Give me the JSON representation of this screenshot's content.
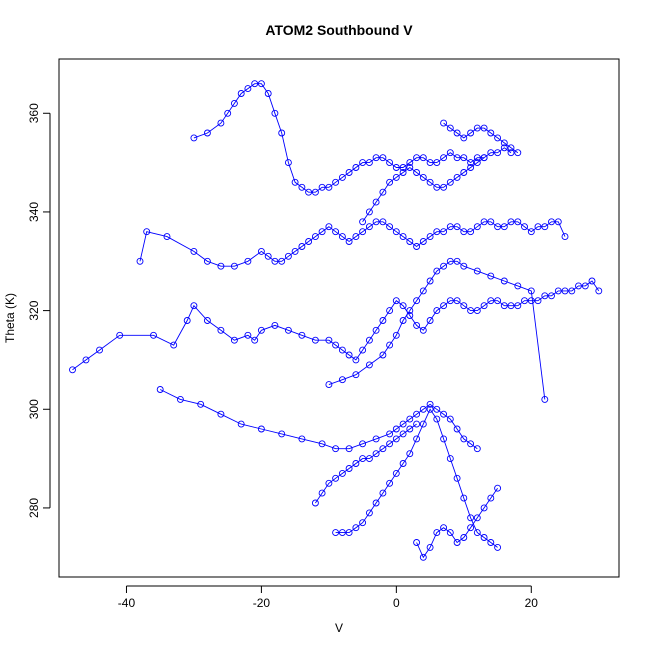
{
  "chart_data": {
    "type": "scatter",
    "title": "ATOM2 Southbound V",
    "xlabel": "V",
    "ylabel": "Theta (K)",
    "xlim": [
      -50,
      33
    ],
    "ylim": [
      266,
      371
    ],
    "xticks": [
      -40,
      -20,
      0,
      20
    ],
    "yticks": [
      280,
      300,
      320,
      340,
      360
    ],
    "grid": false,
    "legend": "none",
    "marker": "open-circle",
    "connected": true,
    "color": "#0000ff",
    "series": [
      {
        "x": [
          -48,
          -46,
          -44,
          -41,
          -36,
          -33,
          -31,
          -30,
          -28,
          -26,
          -24,
          -22,
          -21,
          -20,
          -18,
          -16,
          -14,
          -12,
          -10,
          -9,
          -8,
          -7,
          -6,
          -5,
          -4,
          -3,
          -2,
          -1,
          0,
          1,
          2,
          3,
          4,
          5,
          6,
          7,
          8,
          9,
          10,
          11,
          12,
          13,
          14,
          15,
          16,
          17,
          18,
          19,
          20,
          21,
          22,
          23,
          24,
          25,
          26,
          27,
          28,
          29,
          30
        ],
        "y": [
          308,
          310,
          312,
          315,
          315,
          313,
          318,
          321,
          318,
          316,
          314,
          315,
          314,
          316,
          317,
          316,
          315,
          314,
          314,
          313,
          312,
          311,
          310,
          312,
          314,
          316,
          318,
          320,
          322,
          321,
          319,
          317,
          316,
          318,
          320,
          321,
          322,
          322,
          321,
          320,
          320,
          321,
          322,
          322,
          321,
          321,
          321,
          322,
          322,
          322,
          323,
          323,
          324,
          324,
          324,
          325,
          325,
          326,
          324
        ]
      },
      {
        "x": [
          -38,
          -37,
          -34,
          -30,
          -28,
          -26,
          -24,
          -22,
          -20,
          -19,
          -18,
          -17,
          -16,
          -15,
          -14,
          -13,
          -12,
          -11,
          -10,
          -9,
          -8,
          -7,
          -6,
          -5,
          -4,
          -3,
          -2,
          -1,
          0,
          1,
          2,
          3,
          4,
          5,
          6,
          7,
          8,
          9,
          10,
          11,
          12,
          13,
          14,
          15,
          16,
          17,
          18,
          19,
          20,
          21,
          22,
          23,
          24,
          25
        ],
        "y": [
          330,
          336,
          335,
          332,
          330,
          329,
          329,
          330,
          332,
          331,
          330,
          330,
          331,
          332,
          333,
          334,
          335,
          336,
          337,
          336,
          335,
          334,
          335,
          336,
          337,
          338,
          338,
          337,
          336,
          335,
          334,
          333,
          334,
          335,
          336,
          336,
          337,
          337,
          336,
          336,
          337,
          338,
          338,
          337,
          337,
          338,
          338,
          337,
          336,
          337,
          337,
          338,
          338,
          335
        ]
      },
      {
        "x": [
          -30,
          -28,
          -26,
          -25,
          -24,
          -23,
          -22,
          -21,
          -20,
          -19,
          -18,
          -17,
          -16,
          -15,
          -14,
          -13,
          -12,
          -11,
          -10,
          -9,
          -8,
          -7,
          -6,
          -5,
          -4,
          -3,
          -2,
          -1,
          0,
          1,
          2,
          3,
          4,
          5,
          6,
          7,
          8,
          9,
          10,
          11,
          12,
          13,
          14,
          15,
          16,
          17
        ],
        "y": [
          355,
          356,
          358,
          360,
          362,
          364,
          365,
          366,
          366,
          364,
          360,
          356,
          350,
          346,
          345,
          344,
          344,
          345,
          345,
          346,
          347,
          348,
          349,
          350,
          350,
          351,
          351,
          350,
          349,
          349,
          350,
          351,
          351,
          350,
          350,
          351,
          352,
          351,
          351,
          350,
          351,
          351,
          352,
          352,
          353,
          352
        ]
      },
      {
        "x": [
          -9,
          -8,
          -7,
          -6,
          -5,
          -4,
          -3,
          -2,
          -1,
          0,
          1,
          2,
          3,
          4,
          5,
          6,
          7,
          8,
          9,
          10,
          11,
          12,
          13,
          14,
          15
        ],
        "y": [
          275,
          275,
          275,
          276,
          277,
          279,
          281,
          283,
          285,
          287,
          289,
          291,
          294,
          297,
          300,
          298,
          294,
          290,
          286,
          282,
          278,
          275,
          274,
          273,
          272
        ]
      },
      {
        "x": [
          -35,
          -32,
          -29,
          -26,
          -23,
          -20,
          -17,
          -14,
          -11,
          -9,
          -7,
          -5,
          -3,
          -1,
          0,
          1,
          2,
          3,
          4,
          5,
          6,
          7,
          8,
          9,
          10,
          11,
          12
        ],
        "y": [
          304,
          302,
          301,
          299,
          297,
          296,
          295,
          294,
          293,
          292,
          292,
          293,
          294,
          295,
          296,
          297,
          298,
          299,
          300,
          301,
          300,
          299,
          298,
          296,
          294,
          293,
          292
        ]
      },
      {
        "x": [
          -10,
          -8,
          -6,
          -4,
          -2,
          -1,
          0,
          1,
          2,
          3,
          4,
          5,
          6,
          7,
          8,
          9,
          10,
          12,
          14,
          16,
          18,
          20,
          22
        ],
        "y": [
          305,
          306,
          307,
          309,
          311,
          313,
          315,
          318,
          320,
          322,
          324,
          326,
          328,
          329,
          330,
          330,
          329,
          328,
          327,
          326,
          325,
          324,
          302
        ]
      },
      {
        "x": [
          -5,
          -4,
          -3,
          -2,
          -1,
          0,
          1,
          2,
          3,
          4,
          5,
          6,
          7,
          8,
          9,
          10,
          11,
          12,
          13
        ],
        "y": [
          338,
          340,
          342,
          344,
          346,
          347,
          348,
          349,
          348,
          347,
          346,
          345,
          345,
          346,
          347,
          348,
          349,
          350,
          351
        ]
      },
      {
        "x": [
          -12,
          -11,
          -10,
          -9,
          -8,
          -7,
          -6,
          -5,
          -4,
          -3,
          -2,
          -1,
          0,
          1,
          2,
          3
        ],
        "y": [
          281,
          283,
          285,
          286,
          287,
          288,
          289,
          290,
          290,
          291,
          292,
          293,
          294,
          295,
          296,
          297
        ]
      },
      {
        "x": [
          3,
          4,
          5,
          6,
          7,
          8,
          9,
          10,
          11,
          12,
          13,
          14,
          15
        ],
        "y": [
          273,
          270,
          272,
          275,
          276,
          275,
          273,
          274,
          276,
          278,
          280,
          282,
          284
        ]
      },
      {
        "x": [
          7,
          8,
          9,
          10,
          11,
          12,
          13,
          14,
          15,
          16,
          17,
          18
        ],
        "y": [
          358,
          357,
          356,
          355,
          356,
          357,
          357,
          356,
          355,
          354,
          353,
          352
        ]
      }
    ]
  }
}
